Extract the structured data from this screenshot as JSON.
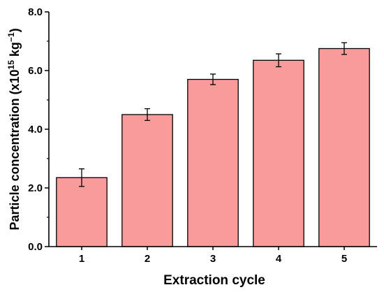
{
  "chart_data": {
    "type": "bar",
    "categories": [
      "1",
      "2",
      "3",
      "4",
      "5"
    ],
    "values": [
      2.35,
      4.5,
      5.7,
      6.35,
      6.75
    ],
    "errors": [
      0.3,
      0.2,
      0.18,
      0.22,
      0.2
    ],
    "title": "",
    "xlabel": "Extraction cycle",
    "ylabel": {
      "main": "Particle concentration (x10",
      "exp1": "15",
      "mid": " kg",
      "exp2": "−1",
      "end": ")"
    },
    "ylim": [
      0,
      8
    ],
    "yticks": [
      "0.0",
      "2.0",
      "4.0",
      "6.0",
      "8.0"
    ],
    "ytick_values": [
      0,
      2,
      4,
      6,
      8
    ],
    "grid": false,
    "legend": "none",
    "colors": {
      "bar_fill": "#FA9B9B",
      "bar_stroke": "#000000",
      "axis": "#000000"
    }
  }
}
